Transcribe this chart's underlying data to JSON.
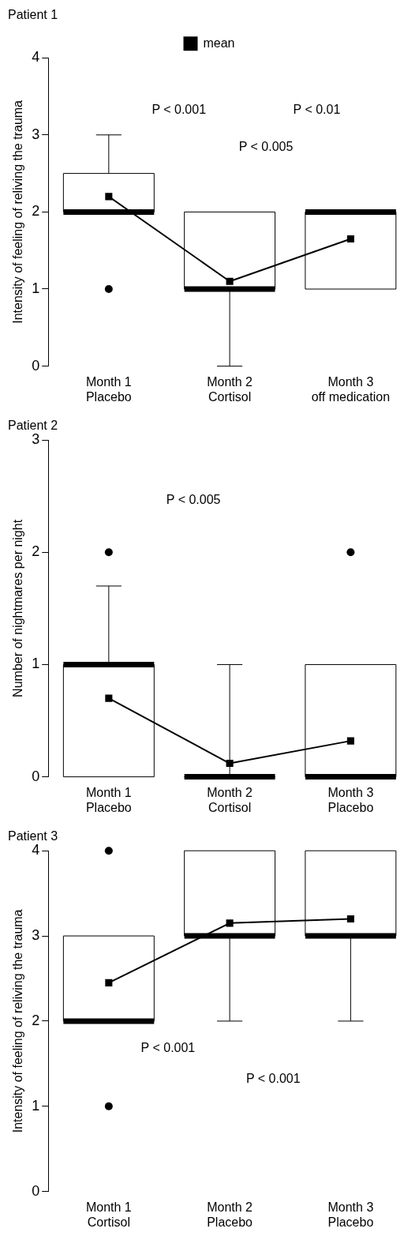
{
  "chart_data": [
    {
      "type": "box",
      "title": "Patient 1",
      "ylabel": "Intensity of feeling of reliving the trauma",
      "categories": [
        "Month 1\nPlacebo",
        "Month 2\nCortisol",
        "Month 3\noff medication"
      ],
      "ylim": [
        0,
        4
      ],
      "yticks": [
        0,
        1,
        2,
        3,
        4
      ],
      "legend": "top",
      "annotations": [
        "P < 0.001",
        "P < 0.01",
        "P < 0.005"
      ],
      "series": [
        {
          "type": "box",
          "color": "#000000",
          "boxes": [
            {
              "low": 2,
              "q1": 2,
              "median": 2,
              "q3": 2.5,
              "high": 3,
              "outliers": [
                1
              ]
            },
            {
              "low": 0,
              "q1": 1,
              "median": 1,
              "q3": 2,
              "high": 2
            },
            {
              "low": 1,
              "q1": 1,
              "median": 2,
              "q3": 2,
              "high": 2
            }
          ]
        },
        {
          "type": "line",
          "name": "mean",
          "color": "#000000",
          "marker": "square",
          "values": [
            2.2,
            1.1,
            1.65
          ]
        }
      ]
    },
    {
      "type": "box",
      "title": "Patient 2",
      "ylabel": "Number of nightmares per night",
      "categories": [
        "Month 1\nPlacebo",
        "Month 2\nCortisol",
        "Month 3\nPlacebo"
      ],
      "ylim": [
        0,
        3
      ],
      "yticks": [
        0,
        1,
        2,
        3
      ],
      "annotations": [
        "P < 0.005"
      ],
      "series": [
        {
          "type": "box",
          "color": "#000000",
          "boxes": [
            {
              "low": 0,
              "q1": 0,
              "median": 1,
              "q3": 1,
              "high": 1.7,
              "outliers": [
                2
              ]
            },
            {
              "low": 0,
              "q1": 0,
              "median": 0,
              "q3": 0,
              "high": 1
            },
            {
              "low": 0,
              "q1": 0,
              "median": 0,
              "q3": 1,
              "high": 1,
              "outliers": [
                2
              ]
            }
          ]
        },
        {
          "type": "line",
          "color": "#000000",
          "marker": "square",
          "values": [
            0.7,
            0.12,
            0.32
          ]
        }
      ]
    },
    {
      "type": "box",
      "title": "Patient 3",
      "ylabel": "Intensity of feeling of reliving the trauma",
      "categories": [
        "Month 1\nCortisol",
        "Month 2\nPlacebo",
        "Month 3\nPlacebo"
      ],
      "ylim": [
        0,
        4
      ],
      "yticks": [
        0,
        1,
        2,
        3,
        4
      ],
      "annotations": [
        "P < 0.001",
        "P < 0.001"
      ],
      "series": [
        {
          "type": "box",
          "color": "#000000",
          "boxes": [
            {
              "low": 2,
              "q1": 2,
              "median": 2,
              "q3": 3,
              "high": 3,
              "outliers": [
                4,
                1
              ]
            },
            {
              "low": 2,
              "q1": 3,
              "median": 3,
              "q3": 4,
              "high": 4
            },
            {
              "low": 2,
              "q1": 3,
              "median": 3,
              "q3": 4,
              "high": 4
            }
          ]
        },
        {
          "type": "line",
          "color": "#000000",
          "marker": "square",
          "values": [
            2.45,
            3.15,
            3.2
          ]
        }
      ]
    }
  ]
}
